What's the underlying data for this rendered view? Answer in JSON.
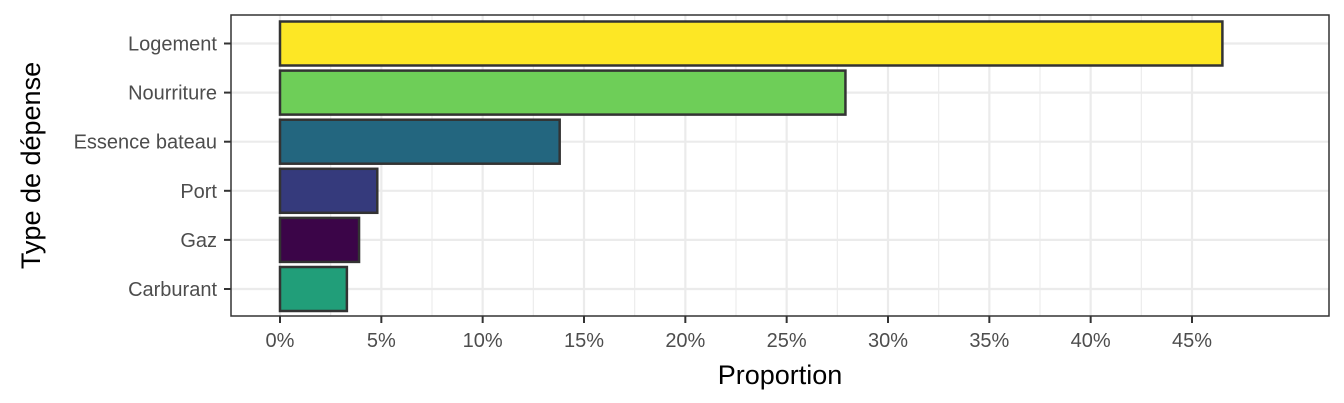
{
  "chart_data": {
    "type": "bar",
    "orientation": "horizontal",
    "title": "",
    "xlabel": "Proportion",
    "ylabel": "Type de dépense",
    "xlim": [
      0,
      0.47
    ],
    "x_ticks": [
      0,
      0.05,
      0.1,
      0.15,
      0.2,
      0.25,
      0.3,
      0.35,
      0.4,
      0.45
    ],
    "x_tick_labels": [
      "0%",
      "5%",
      "10%",
      "15%",
      "20%",
      "25%",
      "30%",
      "35%",
      "40%",
      "45%"
    ],
    "grid": true,
    "legend": "none",
    "categories": [
      "Logement",
      "Nourriture",
      "Essence bateau",
      "Port",
      "Gaz",
      "Carburant"
    ],
    "values": [
      0.465,
      0.279,
      0.138,
      0.048,
      0.039,
      0.033
    ],
    "colors": [
      "#fde725",
      "#6ece58",
      "#23667f",
      "#353a7c",
      "#3b0548",
      "#219e79"
    ]
  }
}
